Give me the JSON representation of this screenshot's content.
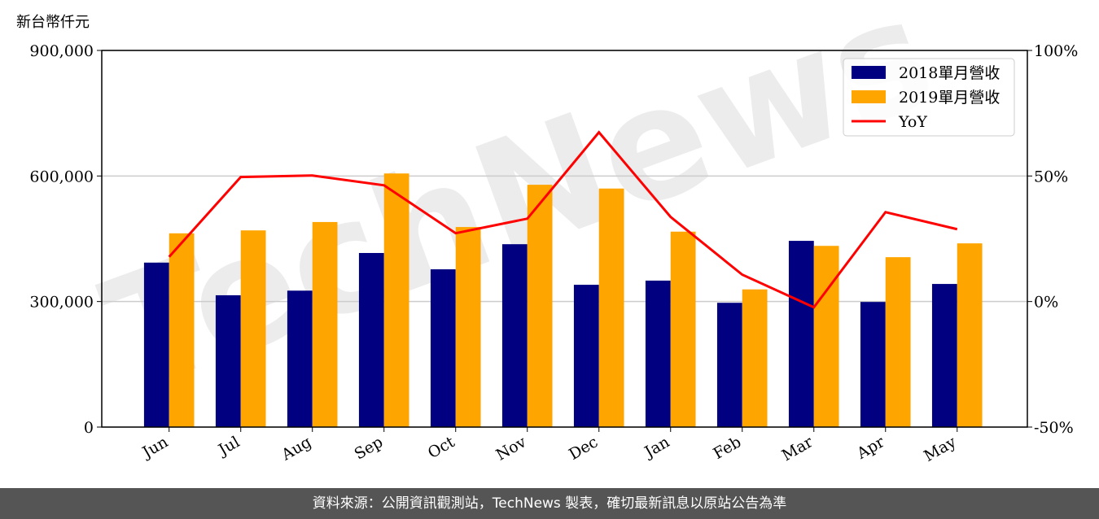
{
  "chart_data": {
    "type": "bar_line",
    "watermark": "TechNews",
    "ylabel": "新台幣仟元",
    "categories": [
      "Jun",
      "Jul",
      "Aug",
      "Sep",
      "Oct",
      "Nov",
      "Dec",
      "Jan",
      "Feb",
      "Mar",
      "Apr",
      "May"
    ],
    "series": [
      {
        "name": "2018單月營收",
        "type": "bar",
        "color": "#000080",
        "values": [
          393000,
          315000,
          326000,
          416000,
          377000,
          437000,
          340000,
          350000,
          297000,
          445000,
          299000,
          342000
        ]
      },
      {
        "name": "2019單月營收",
        "type": "bar",
        "color": "#ffa500",
        "values": [
          463000,
          470000,
          490000,
          606000,
          478000,
          579000,
          570000,
          467000,
          329000,
          433000,
          406000,
          439000
        ]
      },
      {
        "name": "YoY",
        "type": "line",
        "axis": "y2",
        "color": "#ff0000",
        "values": [
          17.8,
          49.6,
          50.2,
          46.3,
          27.2,
          33.0,
          67.4,
          33.7,
          10.7,
          -2.3,
          35.6,
          28.8
        ]
      }
    ],
    "ylim": [
      0,
      900000
    ],
    "yticks": [
      0,
      {
        "value": 300000,
        "label": "300,000"
      },
      {
        "value": 600000,
        "label": "600,000"
      },
      {
        "value": 900000,
        "label": "900,000"
      }
    ],
    "y2lim": [
      -50,
      100
    ],
    "y2ticks": [
      {
        "value": -50,
        "label": "-50%"
      },
      {
        "value": 0,
        "label": "0%"
      },
      {
        "value": 50,
        "label": "50%"
      },
      {
        "value": 100,
        "label": "100%"
      }
    ],
    "grid": true,
    "legend": "upper-right"
  },
  "footer": "資料來源：公開資訊觀測站，TechNews 製表，確切最新訊息以原站公告為準"
}
